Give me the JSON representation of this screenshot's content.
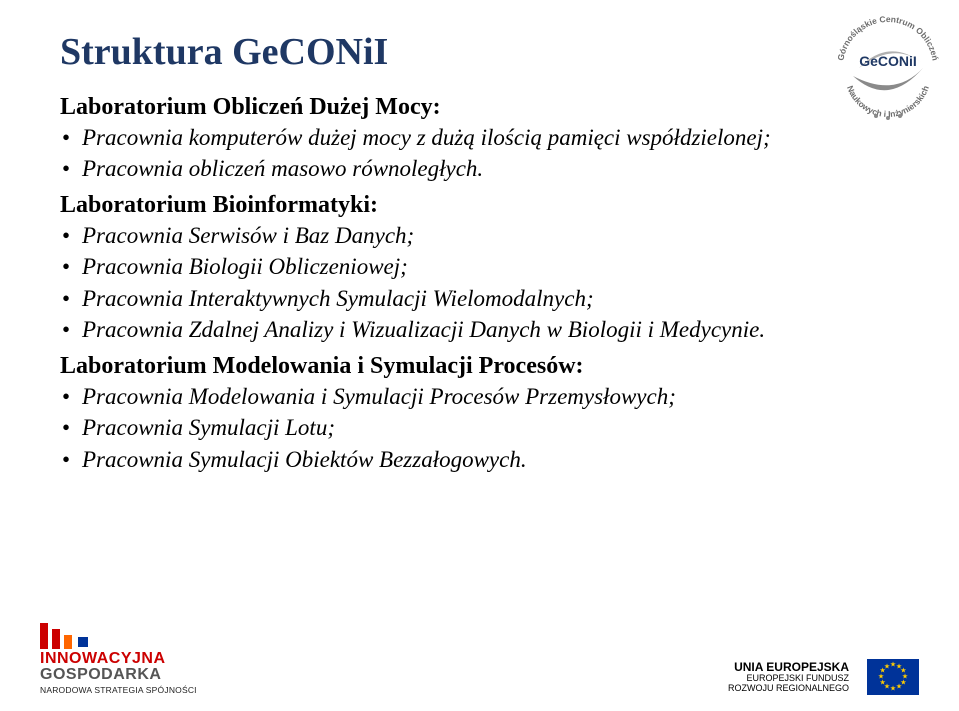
{
  "title": "Struktura GeCONiI",
  "title_color": "#1f3864",
  "sections": [
    {
      "heading": "Laboratorium Obliczeń Dużej Mocy:",
      "items": [
        "Pracownia komputerów dużej mocy z dużą ilością pamięci współdzielonej;",
        "Pracownia obliczeń masowo równoległych."
      ]
    },
    {
      "heading": "Laboratorium Bioinformatyki:",
      "items": [
        "Pracownia Serwisów i Baz Danych;",
        "Pracownia Biologii Obliczeniowej;",
        "Pracownia Interaktywnych Symulacji Wielomodalnych;",
        "Pracownia Zdalnej Analizy i Wizualizacji Danych w Biologii i Medycynie."
      ]
    },
    {
      "heading": "Laboratorium Modelowania i Symulacji Procesów:",
      "items": [
        "Pracownia Modelowania i Symulacji Procesów Przemysłowych;",
        "Pracownia Symulacji Lotu;",
        "Pracownia Symulacji Obiektów Bezzałogowych."
      ]
    }
  ],
  "logo_top": {
    "ring_top": "Górnośląskie Centrum Obliczeń",
    "ring_bottom": "Naukowych i Inżynierskich",
    "brand": "GeCONiI",
    "brand_color": "#1f3864",
    "swoosh_color": "#8a8a8a"
  },
  "footer_left": {
    "title_red": "INNOWACYJNA",
    "title_gray": "GOSPODARKA",
    "subtitle": "NARODOWA STRATEGIA SPÓJNOŚCI",
    "red": "#cc0000",
    "gray": "#555555"
  },
  "footer_right": {
    "line1": "UNIA EUROPEJSKA",
    "line2": "EUROPEJSKI FUNDUSZ",
    "line3": "ROZWOJU REGIONALNEGO",
    "flag_bg": "#003399",
    "star_color": "#ffcc00"
  }
}
